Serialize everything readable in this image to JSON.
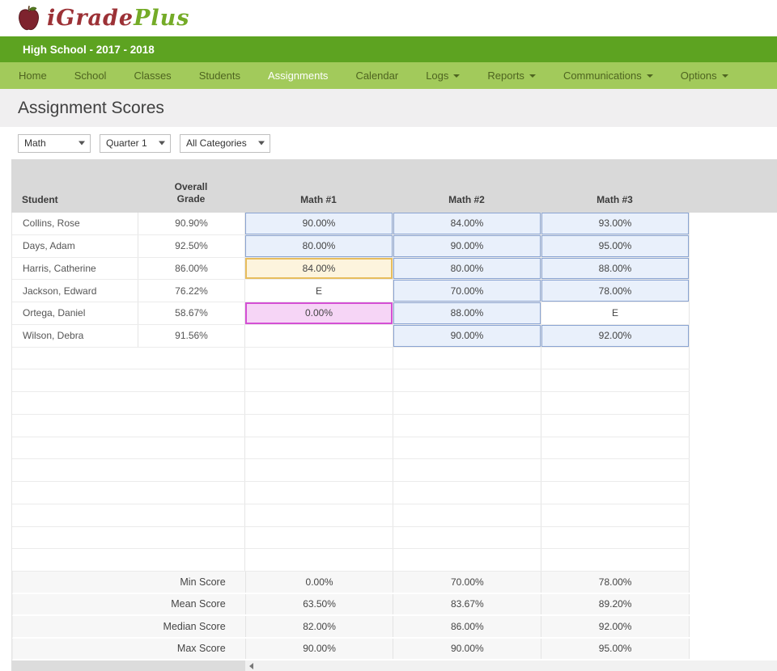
{
  "brand": {
    "name_primary": "iGrade",
    "name_secondary": "Plus",
    "icon": "apple-logo-icon"
  },
  "school_bar": {
    "title": "High School - 2017 - 2018"
  },
  "nav": {
    "items": [
      {
        "label": "Home",
        "active": false,
        "caret": false
      },
      {
        "label": "School",
        "active": false,
        "caret": false
      },
      {
        "label": "Classes",
        "active": false,
        "caret": false
      },
      {
        "label": "Students",
        "active": false,
        "caret": false
      },
      {
        "label": "Assignments",
        "active": true,
        "caret": false
      },
      {
        "label": "Calendar",
        "active": false,
        "caret": false
      },
      {
        "label": "Logs",
        "active": false,
        "caret": true
      },
      {
        "label": "Reports",
        "active": false,
        "caret": true
      },
      {
        "label": "Communications",
        "active": false,
        "caret": true
      },
      {
        "label": "Options",
        "active": false,
        "caret": true
      }
    ]
  },
  "page": {
    "title": "Assignment Scores"
  },
  "filters": [
    {
      "name": "class-select",
      "value": "Math"
    },
    {
      "name": "term-select",
      "value": "Quarter 1"
    },
    {
      "name": "category-select",
      "value": "All Categories"
    }
  ],
  "grid": {
    "columns": [
      "Student",
      "Overall Grade",
      "Math #1",
      "Math #2",
      "Math #3"
    ],
    "rows": [
      {
        "student": "Collins, Rose",
        "overall": "90.90%",
        "scores": [
          {
            "value": "90.00%",
            "style": "blue"
          },
          {
            "value": "84.00%",
            "style": "blue"
          },
          {
            "value": "93.00%",
            "style": "blue"
          }
        ]
      },
      {
        "student": "Days, Adam",
        "overall": "92.50%",
        "scores": [
          {
            "value": "80.00%",
            "style": "blue"
          },
          {
            "value": "90.00%",
            "style": "blue"
          },
          {
            "value": "95.00%",
            "style": "blue"
          }
        ]
      },
      {
        "student": "Harris, Catherine",
        "overall": "86.00%",
        "scores": [
          {
            "value": "84.00%",
            "style": "orange"
          },
          {
            "value": "80.00%",
            "style": "blue"
          },
          {
            "value": "88.00%",
            "style": "blue"
          }
        ]
      },
      {
        "student": "Jackson, Edward",
        "overall": "76.22%",
        "scores": [
          {
            "value": "E",
            "style": "plain"
          },
          {
            "value": "70.00%",
            "style": "blue"
          },
          {
            "value": "78.00%",
            "style": "blue"
          }
        ]
      },
      {
        "student": "Ortega, Daniel",
        "overall": "58.67%",
        "scores": [
          {
            "value": "0.00%",
            "style": "pink"
          },
          {
            "value": "88.00%",
            "style": "blue"
          },
          {
            "value": "E",
            "style": "plain"
          }
        ]
      },
      {
        "student": "Wilson, Debra",
        "overall": "91.56%",
        "scores": [
          {
            "value": "",
            "style": "none"
          },
          {
            "value": "90.00%",
            "style": "blue"
          },
          {
            "value": "92.00%",
            "style": "blue"
          }
        ]
      }
    ],
    "empty_row_count": 10,
    "summary": [
      {
        "label": "Min Score",
        "values": [
          "0.00%",
          "70.00%",
          "78.00%"
        ]
      },
      {
        "label": "Mean Score",
        "values": [
          "63.50%",
          "83.67%",
          "89.20%"
        ]
      },
      {
        "label": "Median Score",
        "values": [
          "82.00%",
          "86.00%",
          "92.00%"
        ]
      },
      {
        "label": "Max Score",
        "values": [
          "90.00%",
          "90.00%",
          "95.00%"
        ]
      }
    ]
  },
  "colors": {
    "brand_green_dark": "#5da321",
    "nav_green": "#a2ca5b",
    "nav_text": "#4e6420",
    "logo_red": "#9c3136",
    "logo_green": "#74ab27",
    "header_gray": "#d9d9d9",
    "score_blue_bg": "#e9f0fb",
    "score_blue_border": "#8aa4d2",
    "score_orange_bg": "#fdf4dd",
    "score_orange_border": "#e7bd5d",
    "score_pink_bg": "#f6d5f6",
    "score_pink_border": "#d44fd4"
  }
}
